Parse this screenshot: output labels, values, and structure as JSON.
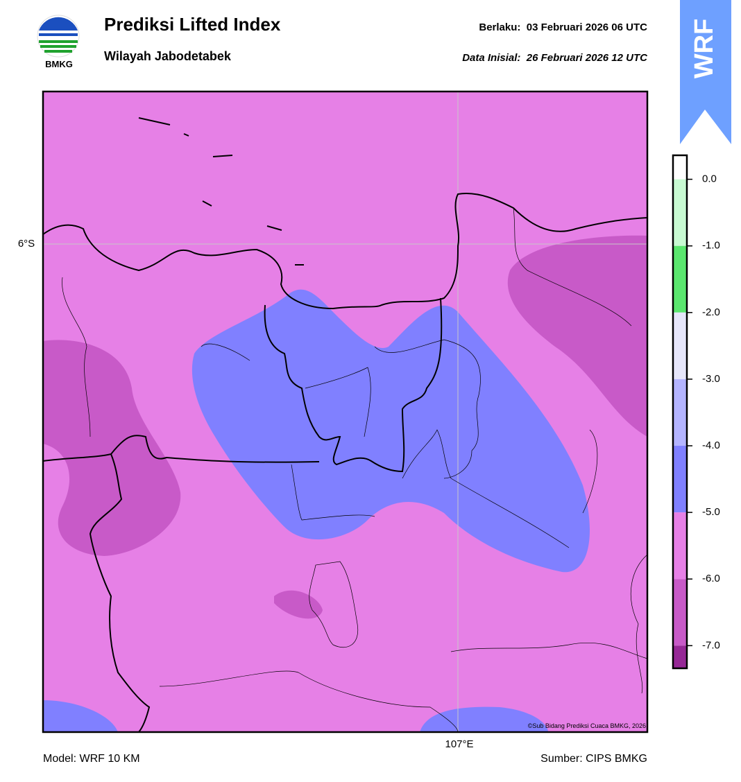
{
  "header": {
    "logo_text": "BMKG",
    "title": "Prediksi Lifted Index",
    "subtitle": "Wilayah Jabodetabek",
    "valid_label": "Berlaku:",
    "valid_time": "03 Februari 2026 06 UTC",
    "init_label": "Data Inisial:",
    "init_time": "26 Februari 2026 12 UTC",
    "badge": "WRF"
  },
  "map": {
    "lat_label": "6°S",
    "lon_label": "107°E",
    "credit": "©Sub Bidang Prediksi Cuaca BMKG, 2026"
  },
  "colorbar": {
    "clim": [
      -7.34,
      0.36
    ],
    "ticks": [
      {
        "value": 0,
        "label": "0.0"
      },
      {
        "value": -1,
        "label": "-1.0"
      },
      {
        "value": -2,
        "label": "-2.0"
      },
      {
        "value": -3,
        "label": "-3.0"
      },
      {
        "value": -4,
        "label": "-4.0"
      },
      {
        "value": -5,
        "label": "-5.0"
      },
      {
        "value": -6,
        "label": "-6.0"
      },
      {
        "value": -7,
        "label": "-7.0"
      }
    ],
    "colors": [
      "#ffffff",
      "#c8fad2",
      "#5ae66e",
      "#e6e6fa",
      "#b4b4ff",
      "#8080ff",
      "#e680e6",
      "#c85ac8",
      "#962896"
    ]
  },
  "footer": {
    "model": "Model: WRF 10 KM",
    "source": "Sumber: CIPS BMKG"
  }
}
